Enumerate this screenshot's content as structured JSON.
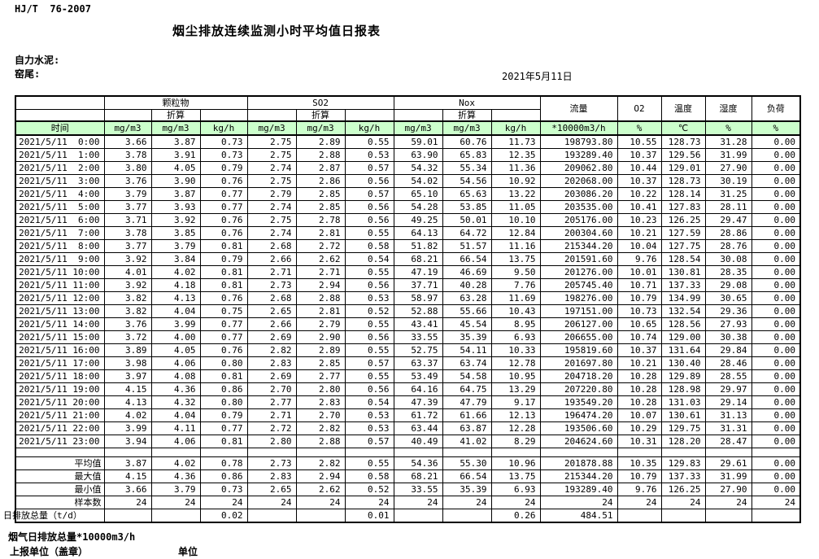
{
  "page": {
    "standard_label": "HJ/T  76-2007",
    "title": "烟尘排放连续监测小时平均值日报表",
    "company": "自力水泥:",
    "kiln": "窑尾:",
    "date": "2021年5月11日"
  },
  "colors": {
    "header_green": "#ccffcc",
    "border": "#000000"
  },
  "table": {
    "groups": {
      "particulate": "颗粒物",
      "so2": "SO2",
      "nox": "Nox",
      "converted": "折算",
      "flow": "流量",
      "o2": "O2",
      "temperature": "温度",
      "humidity": "湿度",
      "load": "负荷"
    },
    "units": {
      "time": "时间",
      "mg_m3": "mg/m3",
      "kg_h": "kg/h",
      "flow_unit": "*10000m3/h",
      "percent": "%",
      "celsius": "℃"
    },
    "rows": [
      [
        "2021/5/11  0:00",
        "3.66",
        "3.87",
        "0.73",
        "2.75",
        "2.89",
        "0.55",
        "59.01",
        "60.76",
        "11.73",
        "198793.80",
        "10.55",
        "128.73",
        "31.28",
        "0.00"
      ],
      [
        "2021/5/11  1:00",
        "3.78",
        "3.91",
        "0.73",
        "2.75",
        "2.88",
        "0.53",
        "63.90",
        "65.83",
        "12.35",
        "193289.40",
        "10.37",
        "129.56",
        "31.99",
        "0.00"
      ],
      [
        "2021/5/11  2:00",
        "3.80",
        "4.05",
        "0.79",
        "2.74",
        "2.87",
        "0.57",
        "54.32",
        "55.34",
        "11.36",
        "209062.80",
        "10.44",
        "129.01",
        "27.90",
        "0.00"
      ],
      [
        "2021/5/11  3:00",
        "3.76",
        "3.90",
        "0.76",
        "2.75",
        "2.86",
        "0.56",
        "54.02",
        "54.56",
        "10.92",
        "202068.00",
        "10.37",
        "128.73",
        "30.19",
        "0.00"
      ],
      [
        "2021/5/11  4:00",
        "3.79",
        "3.87",
        "0.77",
        "2.79",
        "2.85",
        "0.57",
        "65.10",
        "65.63",
        "13.22",
        "203086.20",
        "10.22",
        "128.14",
        "31.25",
        "0.00"
      ],
      [
        "2021/5/11  5:00",
        "3.77",
        "3.93",
        "0.77",
        "2.74",
        "2.85",
        "0.56",
        "54.28",
        "53.85",
        "11.05",
        "203535.00",
        "10.41",
        "127.83",
        "28.11",
        "0.00"
      ],
      [
        "2021/5/11  6:00",
        "3.71",
        "3.92",
        "0.76",
        "2.75",
        "2.78",
        "0.56",
        "49.25",
        "50.01",
        "10.10",
        "205176.00",
        "10.23",
        "126.25",
        "29.47",
        "0.00"
      ],
      [
        "2021/5/11  7:00",
        "3.78",
        "3.85",
        "0.76",
        "2.74",
        "2.81",
        "0.55",
        "64.13",
        "64.72",
        "12.84",
        "200304.60",
        "10.21",
        "127.59",
        "28.86",
        "0.00"
      ],
      [
        "2021/5/11  8:00",
        "3.77",
        "3.79",
        "0.81",
        "2.68",
        "2.72",
        "0.58",
        "51.82",
        "51.57",
        "11.16",
        "215344.20",
        "10.04",
        "127.75",
        "28.76",
        "0.00"
      ],
      [
        "2021/5/11  9:00",
        "3.92",
        "3.84",
        "0.79",
        "2.66",
        "2.62",
        "0.54",
        "68.21",
        "66.54",
        "13.75",
        "201591.60",
        "9.76",
        "128.54",
        "30.08",
        "0.00"
      ],
      [
        "2021/5/11 10:00",
        "4.01",
        "4.02",
        "0.81",
        "2.71",
        "2.71",
        "0.55",
        "47.19",
        "46.69",
        "9.50",
        "201276.00",
        "10.01",
        "130.81",
        "28.35",
        "0.00"
      ],
      [
        "2021/5/11 11:00",
        "3.92",
        "4.18",
        "0.81",
        "2.73",
        "2.94",
        "0.56",
        "37.71",
        "40.28",
        "7.76",
        "205745.40",
        "10.71",
        "137.33",
        "29.08",
        "0.00"
      ],
      [
        "2021/5/11 12:00",
        "3.82",
        "4.13",
        "0.76",
        "2.68",
        "2.88",
        "0.53",
        "58.97",
        "63.28",
        "11.69",
        "198276.00",
        "10.79",
        "134.99",
        "30.65",
        "0.00"
      ],
      [
        "2021/5/11 13:00",
        "3.82",
        "4.04",
        "0.75",
        "2.65",
        "2.81",
        "0.52",
        "52.88",
        "55.66",
        "10.43",
        "197151.00",
        "10.73",
        "132.54",
        "29.36",
        "0.00"
      ],
      [
        "2021/5/11 14:00",
        "3.76",
        "3.99",
        "0.77",
        "2.66",
        "2.79",
        "0.55",
        "43.41",
        "45.54",
        "8.95",
        "206127.00",
        "10.65",
        "128.56",
        "27.93",
        "0.00"
      ],
      [
        "2021/5/11 15:00",
        "3.72",
        "4.00",
        "0.77",
        "2.69",
        "2.90",
        "0.56",
        "33.55",
        "35.39",
        "6.93",
        "206655.00",
        "10.74",
        "129.00",
        "30.38",
        "0.00"
      ],
      [
        "2021/5/11 16:00",
        "3.89",
        "4.05",
        "0.76",
        "2.82",
        "2.89",
        "0.55",
        "52.75",
        "54.11",
        "10.33",
        "195819.60",
        "10.37",
        "131.64",
        "29.84",
        "0.00"
      ],
      [
        "2021/5/11 17:00",
        "3.98",
        "4.06",
        "0.80",
        "2.83",
        "2.85",
        "0.57",
        "63.37",
        "63.74",
        "12.78",
        "201697.80",
        "10.21",
        "130.40",
        "28.46",
        "0.00"
      ],
      [
        "2021/5/11 18:00",
        "3.97",
        "4.08",
        "0.81",
        "2.69",
        "2.77",
        "0.55",
        "53.49",
        "54.58",
        "10.95",
        "204718.20",
        "10.28",
        "129.89",
        "28.55",
        "0.00"
      ],
      [
        "2021/5/11 19:00",
        "4.15",
        "4.36",
        "0.86",
        "2.70",
        "2.80",
        "0.56",
        "64.16",
        "64.75",
        "13.29",
        "207220.80",
        "10.28",
        "128.98",
        "29.97",
        "0.00"
      ],
      [
        "2021/5/11 20:00",
        "4.13",
        "4.32",
        "0.80",
        "2.77",
        "2.83",
        "0.54",
        "47.39",
        "47.79",
        "9.17",
        "193549.20",
        "10.28",
        "131.03",
        "29.14",
        "0.00"
      ],
      [
        "2021/5/11 21:00",
        "4.02",
        "4.04",
        "0.79",
        "2.71",
        "2.70",
        "0.53",
        "61.72",
        "61.66",
        "12.13",
        "196474.20",
        "10.07",
        "130.61",
        "31.13",
        "0.00"
      ],
      [
        "2021/5/11 22:00",
        "3.99",
        "4.11",
        "0.77",
        "2.72",
        "2.82",
        "0.53",
        "63.44",
        "63.87",
        "12.28",
        "193506.60",
        "10.29",
        "129.75",
        "31.31",
        "0.00"
      ],
      [
        "2021/5/11 23:00",
        "3.94",
        "4.06",
        "0.81",
        "2.80",
        "2.88",
        "0.57",
        "40.49",
        "41.02",
        "8.29",
        "204624.60",
        "10.31",
        "128.20",
        "28.47",
        "0.00"
      ]
    ],
    "summary": [
      {
        "label": "平均值",
        "values": [
          "3.87",
          "4.02",
          "0.78",
          "2.73",
          "2.82",
          "0.55",
          "54.36",
          "55.30",
          "10.96",
          "201878.88",
          "10.35",
          "129.83",
          "29.61",
          "0.00"
        ]
      },
      {
        "label": "最大值",
        "values": [
          "4.15",
          "4.36",
          "0.86",
          "2.83",
          "2.94",
          "0.58",
          "68.21",
          "66.54",
          "13.75",
          "215344.20",
          "10.79",
          "137.33",
          "31.99",
          "0.00"
        ]
      },
      {
        "label": "最小值",
        "values": [
          "3.66",
          "3.79",
          "0.73",
          "2.65",
          "2.62",
          "0.52",
          "33.55",
          "35.39",
          "6.93",
          "193289.40",
          "9.76",
          "126.25",
          "27.90",
          "0.00"
        ]
      },
      {
        "label": "样本数",
        "values": [
          "24",
          "24",
          "24",
          "24",
          "24",
          "24",
          "24",
          "24",
          "24",
          "24",
          "24",
          "24",
          "24",
          "24"
        ]
      }
    ],
    "total_row": {
      "label": "日排放总量（t/d）",
      "values": [
        "",
        "",
        "0.02",
        "",
        "",
        "0.01",
        "",
        "",
        "0.26",
        "484.51",
        "",
        "",
        "",
        ""
      ]
    }
  },
  "footer": {
    "flow_note": "烟气日排放总量*10000m3/h",
    "report_unit": "上报单位（盖章）",
    "unit_label": "单位"
  }
}
